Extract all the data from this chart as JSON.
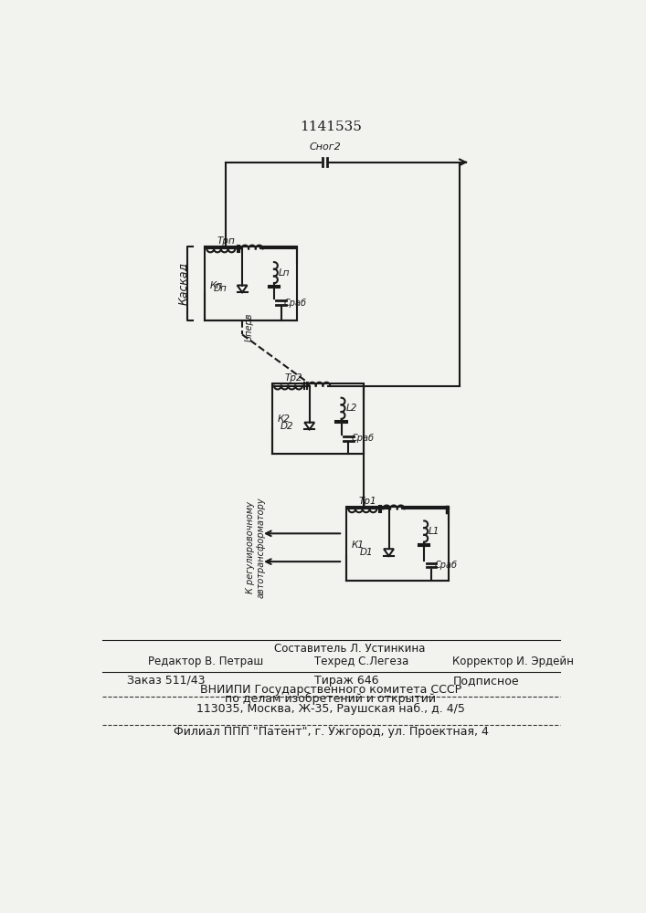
{
  "patent_number": "1141535",
  "background_color": "#f2f2ee",
  "line_color": "#1a1a1a",
  "footer": {
    "sestavitel": "Составитель Л. Устинкина",
    "redaktor": "Редактор В. Петраш",
    "tehred": "Техред С.Легеза",
    "korrektor": "Корректор И. Эрдейн",
    "zakaz": "Заказ 511/43",
    "tirazh": "Тираж 646",
    "podpisnoe": "Подписное",
    "vniipи": "ВНИИПИ Государственного комитета СССР",
    "po_delam": "по делам изобретений и открытий",
    "address": "113035, Москва, Ж-35, Раушская наб., д. 4/5",
    "filial": "Филиал ППП \"Патент\", г. Ужгород, ул. Проектная, 4"
  }
}
